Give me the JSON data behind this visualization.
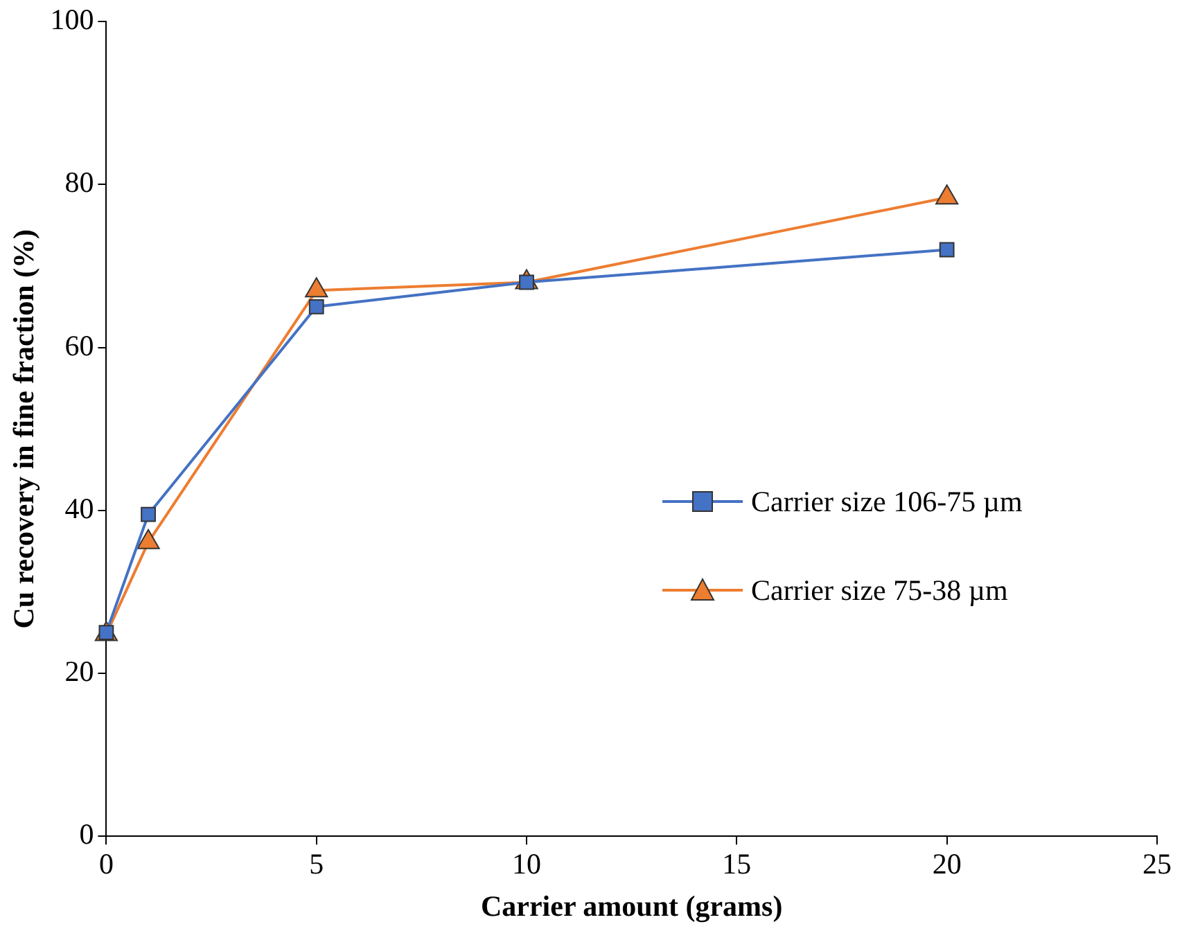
{
  "chart_data": {
    "type": "line",
    "xlabel": "Carrier amount (grams)",
    "ylabel": "Cu recovery in fine fraction (%)",
    "xlim": [
      0,
      25
    ],
    "xticks": [
      0,
      5,
      10,
      15,
      20,
      25
    ],
    "ylim": [
      0,
      100
    ],
    "yticks": [
      0,
      20,
      40,
      60,
      80,
      100
    ],
    "grid": false,
    "legend": "right",
    "line_style": "solid",
    "series": [
      {
        "name": "Carrier size 106-75 µm",
        "color": "#4472c4",
        "marker": "square",
        "x": [
          0,
          1,
          5,
          10,
          20
        ],
        "values": [
          25,
          39.5,
          65,
          68,
          72
        ]
      },
      {
        "name": "Carrier size 75-38 µm",
        "color": "#ed7d31",
        "marker": "triangle",
        "x": [
          0,
          1,
          5,
          10,
          20
        ],
        "values": [
          24.8,
          36.1,
          67,
          68,
          78.4
        ]
      }
    ]
  }
}
